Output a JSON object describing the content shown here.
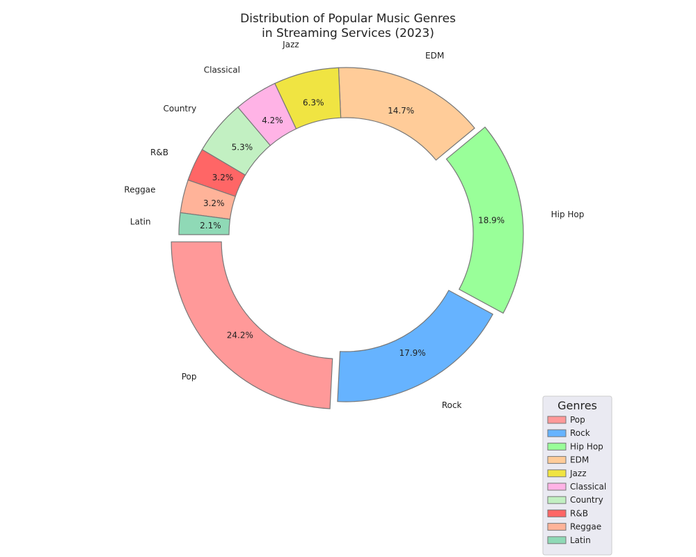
{
  "chart_data": {
    "type": "pie",
    "donut": true,
    "title_lines": [
      "Distribution of Popular Music Genres",
      "in Streaming Services (2023)"
    ],
    "start_angle_deg": 180,
    "direction": "counterclockwise",
    "slices": [
      {
        "label": "Pop",
        "percent_label": "24.2%",
        "value": 24.2,
        "color": "#FF9999",
        "explode": true
      },
      {
        "label": "Rock",
        "percent_label": "17.9%",
        "value": 17.9,
        "color": "#66B3FF",
        "explode": false
      },
      {
        "label": "Hip Hop",
        "percent_label": "18.9%",
        "value": 18.9,
        "color": "#99FF99",
        "explode": true
      },
      {
        "label": "EDM",
        "percent_label": "14.7%",
        "value": 14.7,
        "color": "#FFCC99",
        "explode": false
      },
      {
        "label": "Jazz",
        "percent_label": "6.3%",
        "value": 6.3,
        "color": "#F0E442",
        "explode": false
      },
      {
        "label": "Classical",
        "percent_label": "4.2%",
        "value": 4.2,
        "color": "#FFB3E6",
        "explode": false
      },
      {
        "label": "Country",
        "percent_label": "5.3%",
        "value": 5.3,
        "color": "#C2F0C2",
        "explode": false
      },
      {
        "label": "R&B",
        "percent_label": "3.2%",
        "value": 3.2,
        "color": "#FF6666",
        "explode": false
      },
      {
        "label": "Reggae",
        "percent_label": "3.2%",
        "value": 3.2,
        "color": "#FFB399",
        "explode": false
      },
      {
        "label": "Latin",
        "percent_label": "2.1%",
        "value": 2.1,
        "color": "#8FD9B6",
        "explode": false
      }
    ],
    "legend": {
      "title": "Genres",
      "placement": "bottom-right"
    },
    "edge_color": "#777777"
  }
}
